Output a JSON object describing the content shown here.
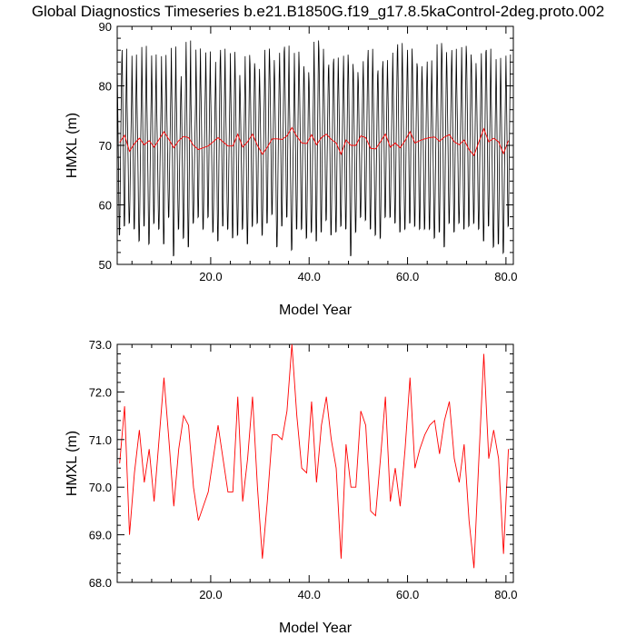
{
  "title": "Global Diagnostics Timeseries b.e21.B1850G.f19_g17.8.5kaControl-2deg.proto.002",
  "colors": {
    "monthly_line": "#000000",
    "annual_line": "#ff0000",
    "axes": "#000000",
    "background": "#ffffff"
  },
  "chart_data": [
    {
      "type": "line",
      "xlabel": "Model Year",
      "ylabel": "HMXL (m)",
      "xlim": [
        1.0,
        81.5
      ],
      "ylim": [
        50,
        90
      ],
      "x_ticks": [
        20,
        40,
        60,
        80
      ],
      "x_tick_labels": [
        "20.0",
        "40.0",
        "60.0",
        "80.0"
      ],
      "y_ticks": [
        50,
        60,
        70,
        80,
        90
      ],
      "y_tick_labels": [
        "50",
        "60",
        "70",
        "80",
        "90"
      ],
      "grid": false,
      "legend": "none",
      "series": [
        {
          "color": "#000000",
          "resolution": "monthly",
          "x_start": 1.0,
          "x_step": 0.08333,
          "values_note_monthly_amplitude": null,
          "annual_max": [
            84.5,
            87,
            78,
            86,
            79.5,
            87.5,
            80,
            86,
            78.5,
            86,
            80.5,
            87.5,
            79.5,
            82.5,
            88.5,
            77.5,
            87,
            81,
            86.5,
            79.5,
            85,
            87,
            80,
            86.5,
            82.5,
            79.5,
            86,
            84.5,
            83.5,
            80,
            87,
            85,
            82.5,
            86.5,
            87.5,
            78.5,
            86.5,
            84,
            83,
            81.5,
            88.5,
            87,
            83.5,
            84.5,
            85.5,
            81.5,
            86,
            84.5,
            83,
            81.5,
            85,
            87,
            82.5,
            83.5,
            85,
            81,
            86.5,
            88,
            83.5,
            87,
            84.5,
            84,
            82,
            85,
            80,
            88,
            86.5,
            84,
            87,
            81,
            87.5,
            86,
            84.5,
            82,
            86.5,
            87,
            79.5,
            85.5,
            80.5,
            86
          ],
          "annual_min": [
            55,
            56.5,
            57,
            56,
            54,
            56.5,
            53.5,
            57,
            56,
            53.5,
            58,
            51.5,
            56,
            54.5,
            53,
            57,
            58,
            56,
            58,
            55.5,
            54,
            56.5,
            56,
            54.5,
            55,
            56,
            53.5,
            56.5,
            57,
            55,
            57,
            58.5,
            53,
            56.5,
            58,
            52.5,
            56,
            56,
            54.5,
            55.5,
            54,
            55.5,
            57.5,
            55,
            55.5,
            56.5,
            56,
            51.5,
            55.5,
            58,
            57.5,
            56,
            55,
            54.5,
            58,
            58,
            57,
            55.5,
            56,
            57,
            56.5,
            56,
            56,
            56,
            54.5,
            55.5,
            53,
            57,
            55.5,
            57,
            56,
            56.5,
            57,
            56,
            54,
            56.5,
            53,
            53.5,
            52,
            56.5
          ]
        },
        {
          "color": "#ff0000",
          "resolution": "annual",
          "x": [
            1.5,
            2.5,
            3.5,
            4.5,
            5.5,
            6.5,
            7.5,
            8.5,
            9.5,
            10.5,
            11.5,
            12.5,
            13.5,
            14.5,
            15.5,
            16.5,
            17.5,
            18.5,
            19.5,
            20.5,
            21.5,
            22.5,
            23.5,
            24.5,
            25.5,
            26.5,
            27.5,
            28.5,
            29.5,
            30.5,
            31.5,
            32.5,
            33.5,
            34.5,
            35.5,
            36.5,
            37.5,
            38.5,
            39.5,
            40.5,
            41.5,
            42.5,
            43.5,
            44.5,
            45.5,
            46.5,
            47.5,
            48.5,
            49.5,
            50.5,
            51.5,
            52.5,
            53.5,
            54.5,
            55.5,
            56.5,
            57.5,
            58.5,
            59.5,
            60.5,
            61.5,
            62.5,
            63.5,
            64.5,
            65.5,
            66.5,
            67.5,
            68.5,
            69.5,
            70.5,
            71.5,
            72.5,
            73.5,
            74.5,
            75.5,
            76.5,
            77.5,
            78.5,
            79.5,
            80.5
          ],
          "values": [
            70.5,
            71.7,
            69.0,
            70.3,
            71.2,
            70.1,
            70.8,
            69.7,
            71.0,
            72.3,
            71.0,
            69.6,
            70.8,
            71.5,
            71.3,
            70.0,
            69.3,
            69.6,
            69.9,
            70.6,
            71.3,
            70.6,
            69.9,
            69.9,
            71.9,
            69.7,
            70.6,
            71.9,
            70.0,
            68.5,
            69.7,
            71.1,
            71.1,
            71.0,
            71.6,
            73.0,
            71.5,
            70.4,
            70.3,
            71.8,
            70.1,
            71.3,
            71.9,
            71.0,
            70.4,
            68.5,
            70.9,
            70.0,
            70.0,
            71.6,
            71.3,
            69.5,
            69.4,
            70.6,
            71.9,
            69.7,
            70.4,
            69.6,
            70.8,
            72.3,
            70.4,
            70.8,
            71.1,
            71.3,
            71.4,
            70.7,
            71.4,
            71.8,
            70.6,
            70.1,
            70.9,
            69.3,
            68.3,
            70.6,
            72.8,
            70.6,
            71.2,
            70.6,
            68.6,
            70.8
          ]
        }
      ]
    },
    {
      "type": "line",
      "xlabel": "Model Year",
      "ylabel": "HMXL (m)",
      "xlim": [
        1.0,
        81.5
      ],
      "ylim": [
        68.0,
        73.0
      ],
      "x_ticks": [
        20,
        40,
        60,
        80
      ],
      "x_tick_labels": [
        "20.0",
        "40.0",
        "60.0",
        "80.0"
      ],
      "y_ticks": [
        68,
        69,
        70,
        71,
        72,
        73
      ],
      "y_tick_labels": [
        "68.0",
        "69.0",
        "70.0",
        "71.0",
        "72.0",
        "73.0"
      ],
      "grid": false,
      "legend": "none",
      "series": [
        {
          "color": "#ff0000",
          "resolution": "annual",
          "x": [
            1.5,
            2.5,
            3.5,
            4.5,
            5.5,
            6.5,
            7.5,
            8.5,
            9.5,
            10.5,
            11.5,
            12.5,
            13.5,
            14.5,
            15.5,
            16.5,
            17.5,
            18.5,
            19.5,
            20.5,
            21.5,
            22.5,
            23.5,
            24.5,
            25.5,
            26.5,
            27.5,
            28.5,
            29.5,
            30.5,
            31.5,
            32.5,
            33.5,
            34.5,
            35.5,
            36.5,
            37.5,
            38.5,
            39.5,
            40.5,
            41.5,
            42.5,
            43.5,
            44.5,
            45.5,
            46.5,
            47.5,
            48.5,
            49.5,
            50.5,
            51.5,
            52.5,
            53.5,
            54.5,
            55.5,
            56.5,
            57.5,
            58.5,
            59.5,
            60.5,
            61.5,
            62.5,
            63.5,
            64.5,
            65.5,
            66.5,
            67.5,
            68.5,
            69.5,
            70.5,
            71.5,
            72.5,
            73.5,
            74.5,
            75.5,
            76.5,
            77.5,
            78.5,
            79.5,
            80.5
          ],
          "values": [
            70.5,
            71.7,
            69.0,
            70.3,
            71.2,
            70.1,
            70.8,
            69.7,
            71.0,
            72.3,
            71.0,
            69.6,
            70.8,
            71.5,
            71.3,
            70.0,
            69.3,
            69.6,
            69.9,
            70.6,
            71.3,
            70.6,
            69.9,
            69.9,
            71.9,
            69.7,
            70.6,
            71.9,
            70.0,
            68.5,
            69.7,
            71.1,
            71.1,
            71.0,
            71.6,
            73.0,
            71.5,
            70.4,
            70.3,
            71.8,
            70.1,
            71.3,
            71.9,
            71.0,
            70.4,
            68.5,
            70.9,
            70.0,
            70.0,
            71.6,
            71.3,
            69.5,
            69.4,
            70.6,
            71.9,
            69.7,
            70.4,
            69.6,
            70.8,
            72.3,
            70.4,
            70.8,
            71.1,
            71.3,
            71.4,
            70.7,
            71.4,
            71.8,
            70.6,
            70.1,
            70.9,
            69.3,
            68.3,
            70.6,
            72.8,
            70.6,
            71.2,
            70.6,
            68.6,
            70.8
          ]
        }
      ]
    }
  ]
}
